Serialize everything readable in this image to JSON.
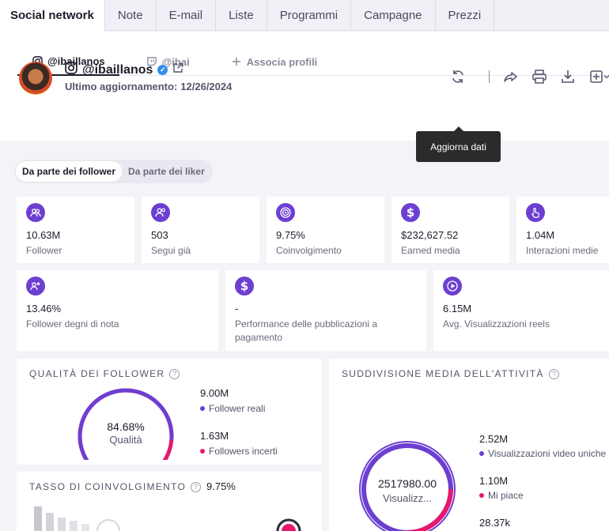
{
  "top_tabs": [
    "Social network",
    "Note",
    "E-mail",
    "Liste",
    "Programmi",
    "Campagne",
    "Prezzi"
  ],
  "profile_tabs": {
    "instagram": "@ibaillanos",
    "twitch": "@ibai",
    "add": "Associa profili"
  },
  "profile": {
    "handle": "@ibaillanos",
    "last_update_label": "Ultimo aggiornamento:",
    "last_update_date": "12/26/2024"
  },
  "tooltip": "Aggiorna dati",
  "toggle": {
    "followers": "Da parte dei follower",
    "likers": "Da parte dei liker"
  },
  "stats_row1": [
    {
      "icon": "users-icon",
      "value": "10.63M",
      "label": "Follower"
    },
    {
      "icon": "user-follow-icon",
      "value": "503",
      "label": "Segui già"
    },
    {
      "icon": "target-icon",
      "value": "9.75%",
      "label": "Coinvolgimento"
    },
    {
      "icon": "dollar-icon",
      "value": "$232,627.52",
      "label": "Earned media"
    },
    {
      "icon": "tap-icon",
      "value": "1.04M",
      "label": "Interazioni medie"
    }
  ],
  "stats_row2": [
    {
      "icon": "notable-users-icon",
      "value": "13.46%",
      "label": "Follower degni di nota"
    },
    {
      "icon": "dollar-icon",
      "value": "-",
      "label": "Performance delle pubblicazioni a pagamento"
    },
    {
      "icon": "play-icon",
      "value": "6.15M",
      "label": "Avg. Visualizzazioni reels"
    }
  ],
  "follower_quality": {
    "title": "QUALITÀ DEI FOLLOWER",
    "center_value": "84.68%",
    "center_label": "Qualità",
    "real_value": "9.00M",
    "real_label": "Follower reali",
    "uncertain_value": "1.63M",
    "uncertain_label": "Followers incerti",
    "quality_fraction": 0.8468
  },
  "activity": {
    "title": "SUDDIVISIONE MEDIA DELL'ATTIVITÀ",
    "center_value": "2517980.00",
    "center_label": "Visualizz...",
    "items": [
      {
        "value": "2.52M",
        "label": "Visualizzazioni video uniche"
      },
      {
        "value": "1.10M",
        "label": "Mi piace"
      },
      {
        "value": "28.37k",
        "label": ""
      }
    ]
  },
  "engagement": {
    "title": "TASSO DI COINVOLGIMENTO",
    "value": "9.75%"
  },
  "colors": {
    "accent": "#6c3fd1",
    "pink": "#e5186e",
    "dark": "#1d1d2b"
  }
}
